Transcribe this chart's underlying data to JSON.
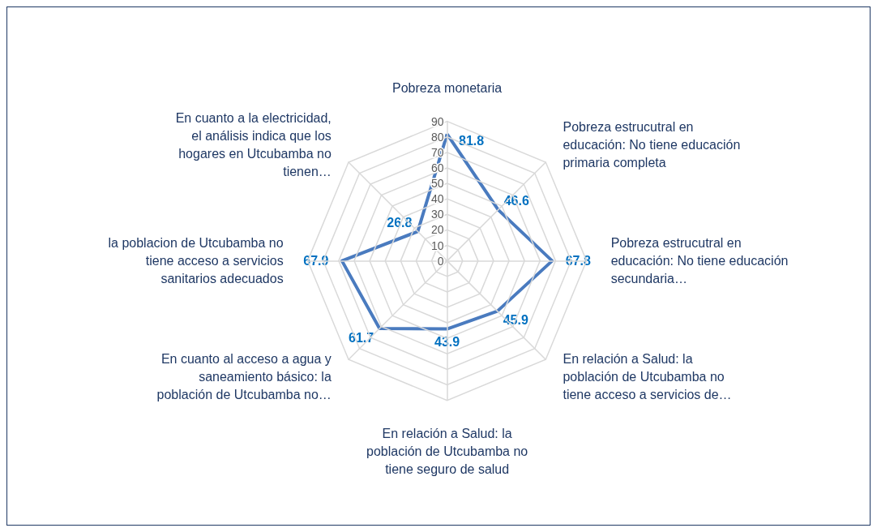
{
  "chart_data": {
    "type": "radar",
    "categories": [
      "Pobreza monetaria",
      "Pobreza estrucutral en educación: No tiene educación primaria completa",
      "Pobreza estrucutral en educación: No tiene educación secundaria…",
      "En relación a Salud: la población de Utcubamba no tiene acceso a servicios de…",
      "En relación a Salud: la población de Utcubamba no tiene seguro de salud",
      "En cuanto al acceso a agua y saneamiento básico: la población de Utcubamba no…",
      "la poblacion de Utcubamba no tiene acceso a servicios sanitarios adecuados",
      "En cuanto a la electricidad, el análisis indica que los hogares en Utcubamba no tienen…"
    ],
    "series": [
      {
        "color": "#4a7bbf",
        "values": [
          81.8,
          46.6,
          67.8,
          45.9,
          43.9,
          61.7,
          67.9,
          26.8
        ]
      }
    ],
    "ylim": [
      0,
      90
    ],
    "yticks": [
      0,
      10,
      20,
      30,
      40,
      50,
      60,
      70,
      80,
      90
    ],
    "data_labels": true,
    "grid": true,
    "marker": "none",
    "line_style": "solid"
  }
}
